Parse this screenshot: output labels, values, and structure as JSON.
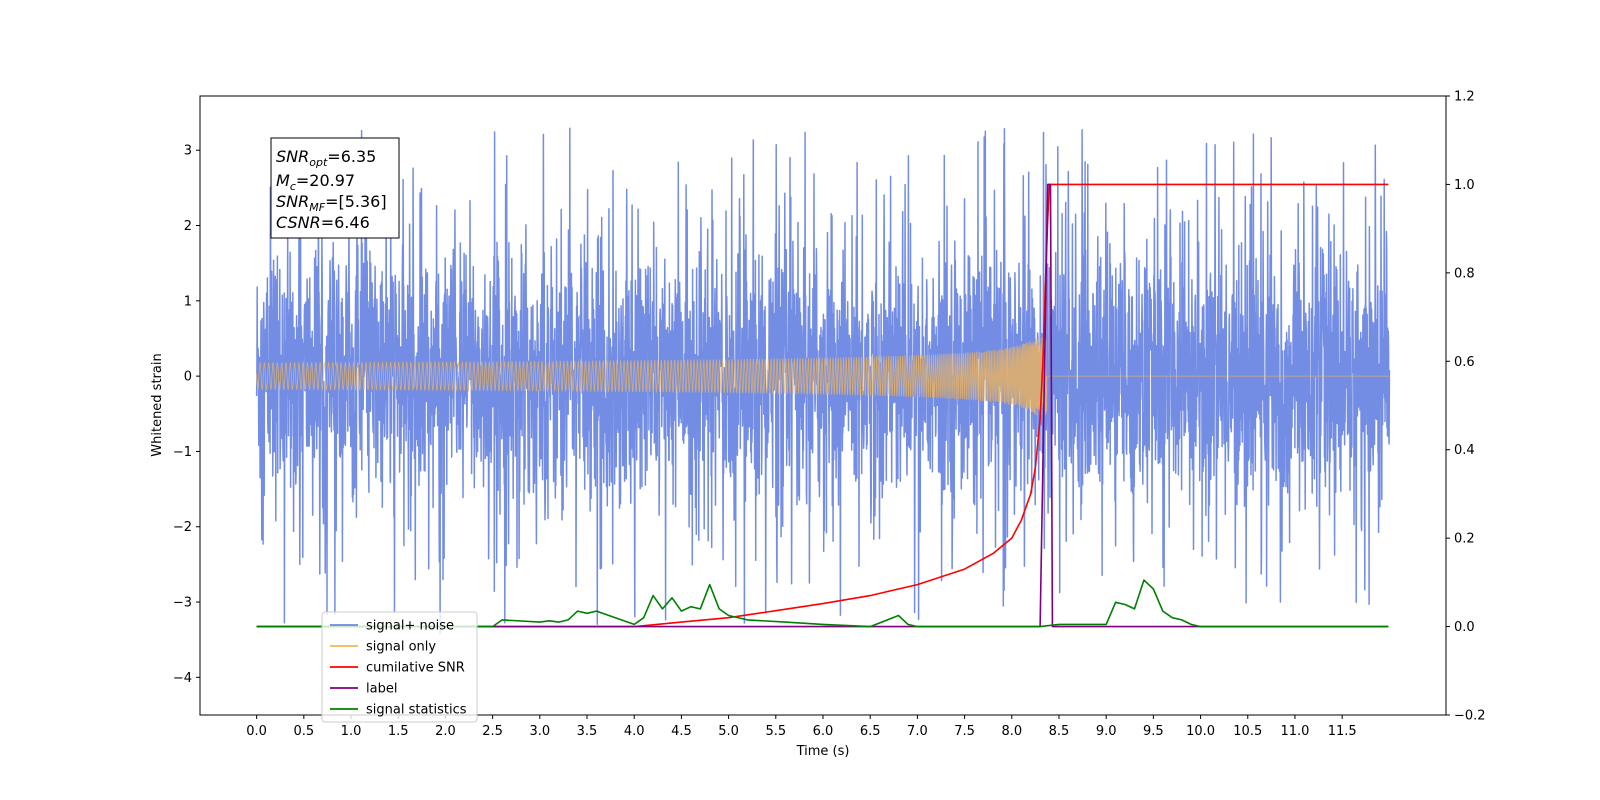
{
  "chart_data": {
    "type": "line",
    "title": "",
    "xlabel": "Time (s)",
    "ylabel": "Whitened strain",
    "xlim": [
      -0.6,
      12.6
    ],
    "ylim": [
      -4.5,
      3.72
    ],
    "y2lim": [
      -0.2,
      1.2
    ],
    "x_ticks": [
      0.0,
      0.5,
      1.0,
      1.5,
      2.0,
      2.5,
      3.0,
      3.5,
      4.0,
      4.5,
      5.0,
      5.5,
      6.0,
      6.5,
      7.0,
      7.5,
      8.0,
      8.5,
      9.0,
      9.5,
      10.0,
      10.5,
      11.0,
      11.5
    ],
    "x_tick_labels": [
      "0.0",
      "0.5",
      "1.0",
      "1.5",
      "2.0",
      "2.5",
      "3.0",
      "3.5",
      "4.0",
      "4.5",
      "5.0",
      "5.5",
      "6.0",
      "6.5",
      "7.0",
      "7.5",
      "8.0",
      "8.5",
      "9.0",
      "9.5",
      "10.0",
      "10.5",
      "11.0",
      "11.5"
    ],
    "y_ticks": [
      -4,
      -3,
      -2,
      -1,
      0,
      1,
      2,
      3
    ],
    "y_tick_labels": [
      "−4",
      "−3",
      "−2",
      "−1",
      "0",
      "1",
      "2",
      "3"
    ],
    "y2_ticks": [
      -0.2,
      0.0,
      0.2,
      0.4,
      0.6,
      0.8,
      1.0,
      1.2
    ],
    "y2_tick_labels": [
      "−0.2",
      "0.0",
      "0.2",
      "0.4",
      "0.6",
      "0.8",
      "1.0",
      "1.2"
    ],
    "legend_position": "lower-left",
    "grid": false,
    "series": [
      {
        "name": "signal+ noise",
        "axis": "left",
        "color": "#6b87e3",
        "kind": "noise",
        "x_range": [
          0.0,
          12.0
        ],
        "amplitude_range": [
          -4.1,
          3.35
        ],
        "typical_spread": 0.85
      },
      {
        "name": "signal only",
        "axis": "left",
        "color": "#f5b754",
        "kind": "chirp",
        "x_range": [
          0.0,
          12.0
        ],
        "merger_time": 8.37,
        "peak_amplitude": 0.52
      },
      {
        "name": "cumilative SNR",
        "axis": "right",
        "color": "#ff0000",
        "x": [
          0.0,
          2.0,
          3.0,
          3.5,
          4.0,
          4.5,
          5.0,
          5.5,
          6.0,
          6.5,
          7.0,
          7.5,
          7.8,
          8.0,
          8.1,
          8.2,
          8.25,
          8.3,
          8.33,
          8.36,
          8.38,
          8.4,
          9.0,
          10.0,
          11.0,
          11.5,
          11.99
        ],
        "values": [
          0.0,
          0.0,
          0.0,
          0.0,
          0.0,
          0.01,
          0.02,
          0.036,
          0.052,
          0.07,
          0.095,
          0.13,
          0.165,
          0.2,
          0.24,
          0.3,
          0.36,
          0.47,
          0.6,
          0.8,
          0.92,
          1.0,
          1.0,
          1.0,
          1.0,
          1.0,
          1.0
        ]
      },
      {
        "name": "label",
        "axis": "right",
        "color": "#800080",
        "x": [
          0.0,
          8.28,
          8.3,
          8.38,
          8.41,
          8.43,
          11.99
        ],
        "values": [
          0.0,
          0.0,
          0.0,
          1.0,
          1.0,
          0.0,
          0.0
        ]
      },
      {
        "name": "signal statistics",
        "axis": "right",
        "color": "#008000",
        "x": [
          0.0,
          2.5,
          2.6,
          3.0,
          3.1,
          3.2,
          3.3,
          3.4,
          3.5,
          3.6,
          3.8,
          4.0,
          4.1,
          4.2,
          4.3,
          4.4,
          4.5,
          4.6,
          4.7,
          4.8,
          4.9,
          5.0,
          5.2,
          5.6,
          6.0,
          6.5,
          6.8,
          6.9,
          7.0,
          8.3,
          8.5,
          9.0,
          9.1,
          9.2,
          9.3,
          9.4,
          9.5,
          9.6,
          9.7,
          9.8,
          9.9,
          10.0,
          11.0,
          11.99
        ],
        "values": [
          0.0,
          0.0,
          0.015,
          0.01,
          0.013,
          0.01,
          0.015,
          0.035,
          0.03,
          0.035,
          0.02,
          0.005,
          0.02,
          0.07,
          0.04,
          0.065,
          0.035,
          0.045,
          0.04,
          0.095,
          0.04,
          0.025,
          0.015,
          0.01,
          0.005,
          0.0,
          0.025,
          0.005,
          0.0,
          0.0,
          0.005,
          0.005,
          0.055,
          0.05,
          0.04,
          0.105,
          0.085,
          0.035,
          0.02,
          0.015,
          0.005,
          0.0,
          0.0,
          0.0
        ]
      }
    ],
    "legend_entries": [
      {
        "label": "signal+ noise",
        "color": "#6b87e3"
      },
      {
        "label": "signal only",
        "color": "#f5b754"
      },
      {
        "label": "cumilative SNR",
        "color": "#ff0000"
      },
      {
        "label": "label",
        "color": "#800080"
      },
      {
        "label": "signal statistics",
        "color": "#008000"
      }
    ],
    "annotation": {
      "snr_opt_value": "=6.35",
      "mc_value": "=20.97",
      "snr_mf_value": "=[5.36]",
      "csnr_value": "=6.46"
    }
  }
}
